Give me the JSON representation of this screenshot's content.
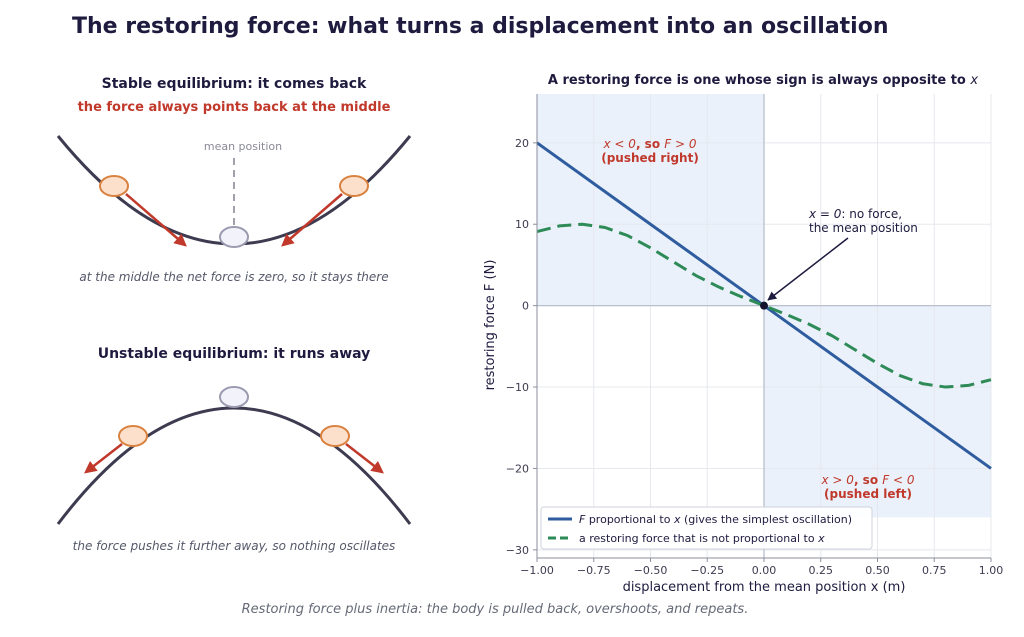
{
  "figure": {
    "title": "The restoring force: what turns a displacement into an oscillation",
    "footer": "Restoring force plus inertia: the body is pulled back, overshoots, and repeats."
  },
  "stable_panel": {
    "title": "Stable equilibrium: it comes back",
    "subtitle": "the force always points back at the middle",
    "mean_label": "mean position",
    "caption": "at the middle the net force is zero, so it stays there"
  },
  "unstable_panel": {
    "title": "Unstable equilibrium: it runs away",
    "caption": "the force pushes it further away, so nothing oscillates"
  },
  "colors": {
    "curve": "#3d3b50",
    "ball_fill": "#fde0cc",
    "ball_stroke": "#d9813f",
    "rest_ball_fill": "#f2f2fa",
    "rest_ball_stroke": "#9a9ab0",
    "arrow": "#c0392b",
    "linear_series": "#2e5c9e",
    "nonlinear_series": "#2e8b57",
    "shade": "#eaf1fb",
    "annotation_red": "#c0392b"
  },
  "chart_data": {
    "type": "line",
    "title_prefix": "A restoring force is one whose sign is always opposite to",
    "title_var": "x",
    "xlabel": "displacement from the mean position  x  (m)",
    "ylabel": "restoring force  F  (N)",
    "xlim": [
      -1.0,
      1.0
    ],
    "ylim": [
      -31,
      26
    ],
    "xticks": [
      -1.0,
      -0.75,
      -0.5,
      -0.25,
      0.0,
      0.25,
      0.5,
      0.75,
      1.0
    ],
    "xtick_labels": [
      "−1.00",
      "−0.75",
      "−0.50",
      "−0.25",
      "0.00",
      "0.25",
      "0.50",
      "0.75",
      "1.00"
    ],
    "yticks": [
      -30,
      -20,
      -10,
      0,
      10,
      20
    ],
    "ytick_labels": [
      "−30",
      "−20",
      "−10",
      "0",
      "10",
      "20"
    ],
    "grid": true,
    "legend_position": "lower-left",
    "shaded_regions": [
      {
        "x": [
          -1.0,
          0.0
        ],
        "y": [
          0,
          26
        ]
      },
      {
        "x": [
          0.0,
          1.0
        ],
        "y": [
          -26,
          0
        ]
      }
    ],
    "series": [
      {
        "name": "proportional to",
        "name_var": "F",
        "name_var2": "x",
        "name_suffix": "(gives the simplest oscillation)",
        "style": "solid",
        "x": [
          -1.0,
          1.0
        ],
        "y": [
          20,
          -20
        ]
      },
      {
        "name": "a restoring force that is not proportional to",
        "name_var": "x",
        "style": "dashed",
        "x": [
          -1.0,
          -0.9,
          -0.8,
          -0.7,
          -0.6,
          -0.5,
          -0.4,
          -0.3,
          -0.2,
          -0.1,
          0.0,
          0.1,
          0.2,
          0.3,
          0.4,
          0.5,
          0.6,
          0.7,
          0.8,
          0.9,
          1.0
        ],
        "y": [
          9.1,
          9.8,
          10.0,
          9.6,
          8.6,
          7.1,
          5.4,
          3.7,
          2.3,
          1.1,
          0.0,
          -1.1,
          -2.3,
          -3.7,
          -5.4,
          -7.1,
          -8.6,
          -9.6,
          -10.0,
          -9.8,
          -9.1
        ]
      }
    ],
    "annotations": {
      "origin_line1": ": no force,",
      "origin_line1_var": "x = 0",
      "origin_line2": "the mean position",
      "left_line1_a": "x < 0",
      "left_line1_b": ", so ",
      "left_line1_c": "F > 0",
      "left_line2": "(pushed right)",
      "right_line1_a": "x > 0",
      "right_line1_b": ", so ",
      "right_line1_c": "F < 0",
      "right_line2": "(pushed left)"
    }
  }
}
